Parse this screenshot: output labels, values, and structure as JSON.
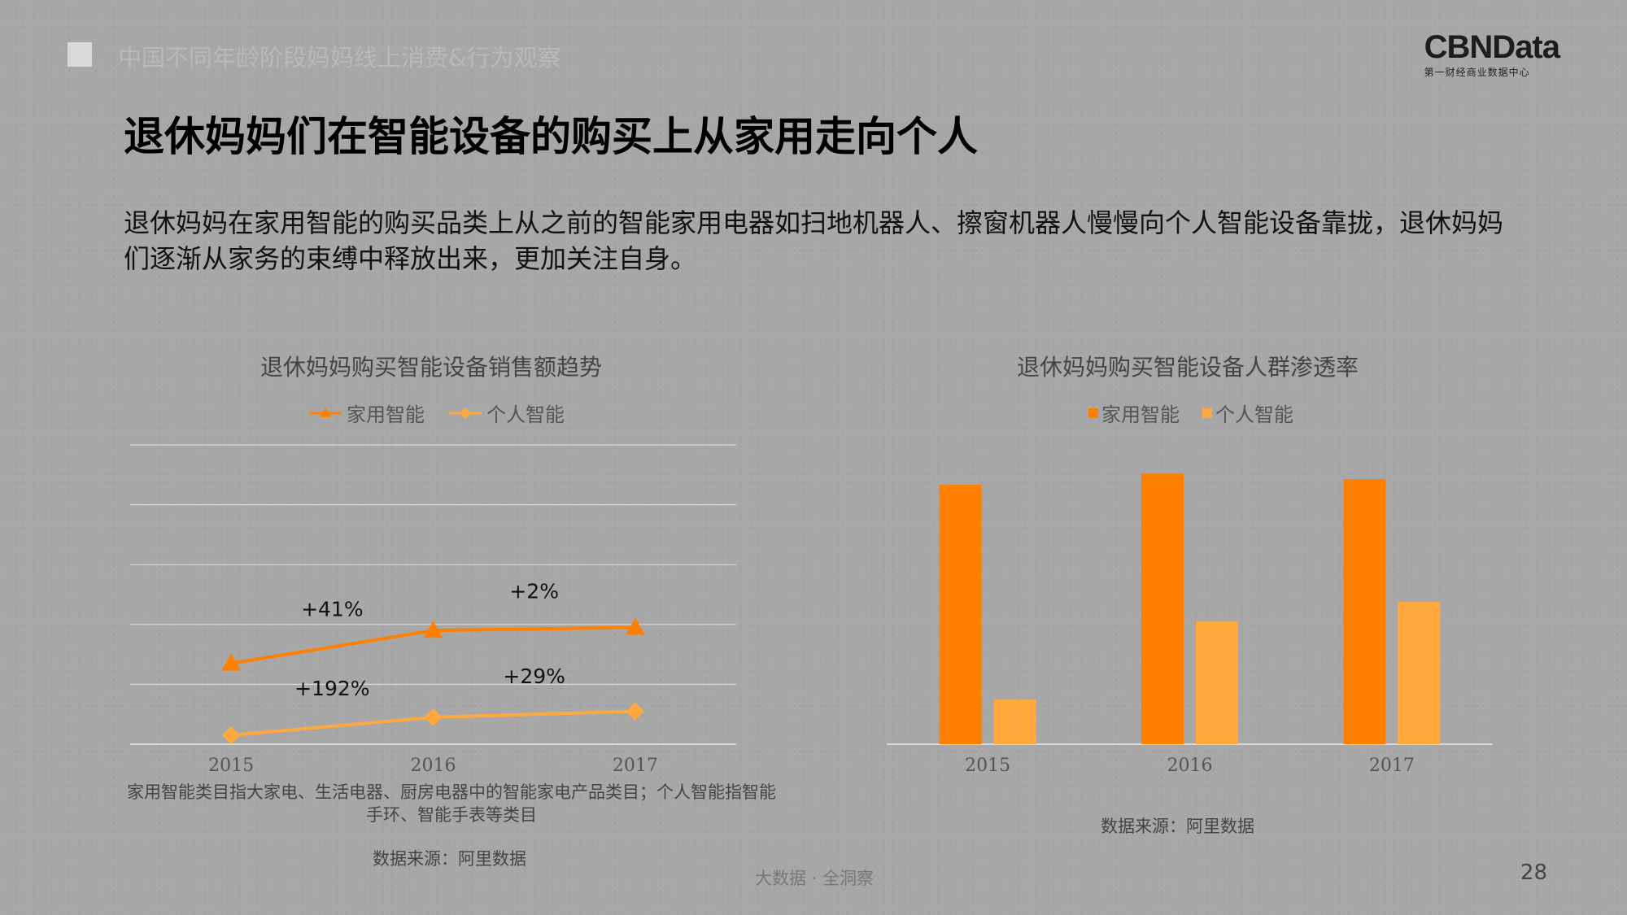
{
  "header": {
    "report_title": "中国不同年龄阶段妈妈线上消费&行为观察",
    "logo_brand": "CBNData",
    "logo_sub": "第一财经商业数据中心"
  },
  "page": {
    "heading": "退休妈妈们在智能设备的购买上从家用走向个人",
    "intro": "退休妈妈在家用智能的购买品类上从之前的智能家用电器如扫地机器人、擦窗机器人慢慢向个人智能设备靠拢，退休妈妈们逐渐从家务的束缚中释放出来，更加关注自身。",
    "footer_tag": "大数据 · 全洞察",
    "page_number": "28"
  },
  "left_chart": {
    "note": "家用智能类目指大家电、生活电器、厨房电器中的智能家电产品类目；个人智能指智能手环、智能手表等类目",
    "source": "数据来源：阿里数据"
  },
  "right_chart": {
    "source": "数据来源：阿里数据"
  },
  "colors": {
    "home_smart": "#ff7f00",
    "personal_smart": "#ffa83e",
    "gridline": "#dadada"
  },
  "chart_data": [
    {
      "type": "line",
      "title": "退休妈妈购买智能设备销售额趋势",
      "categories": [
        "2015",
        "2016",
        "2017"
      ],
      "ylim": [
        0,
        100
      ],
      "grid": true,
      "legend": "top-center",
      "series": [
        {
          "name": "家用智能",
          "marker": "triangle",
          "values": [
            27,
            38,
            39
          ],
          "annotations": [
            "",
            "+41%",
            "+2%"
          ]
        },
        {
          "name": "个人智能",
          "marker": "diamond",
          "values": [
            3,
            9,
            11
          ],
          "annotations": [
            "",
            "+192%",
            "+29%"
          ]
        }
      ]
    },
    {
      "type": "bar",
      "title": "退休妈妈购买智能设备人群渗透率",
      "categories": [
        "2015",
        "2016",
        "2017"
      ],
      "ylim": [
        0,
        100
      ],
      "grid": false,
      "legend": "top-center",
      "series": [
        {
          "name": "家用智能",
          "values": [
            93,
            97,
            95
          ]
        },
        {
          "name": "个人智能",
          "values": [
            16,
            44,
            51
          ]
        }
      ]
    }
  ]
}
